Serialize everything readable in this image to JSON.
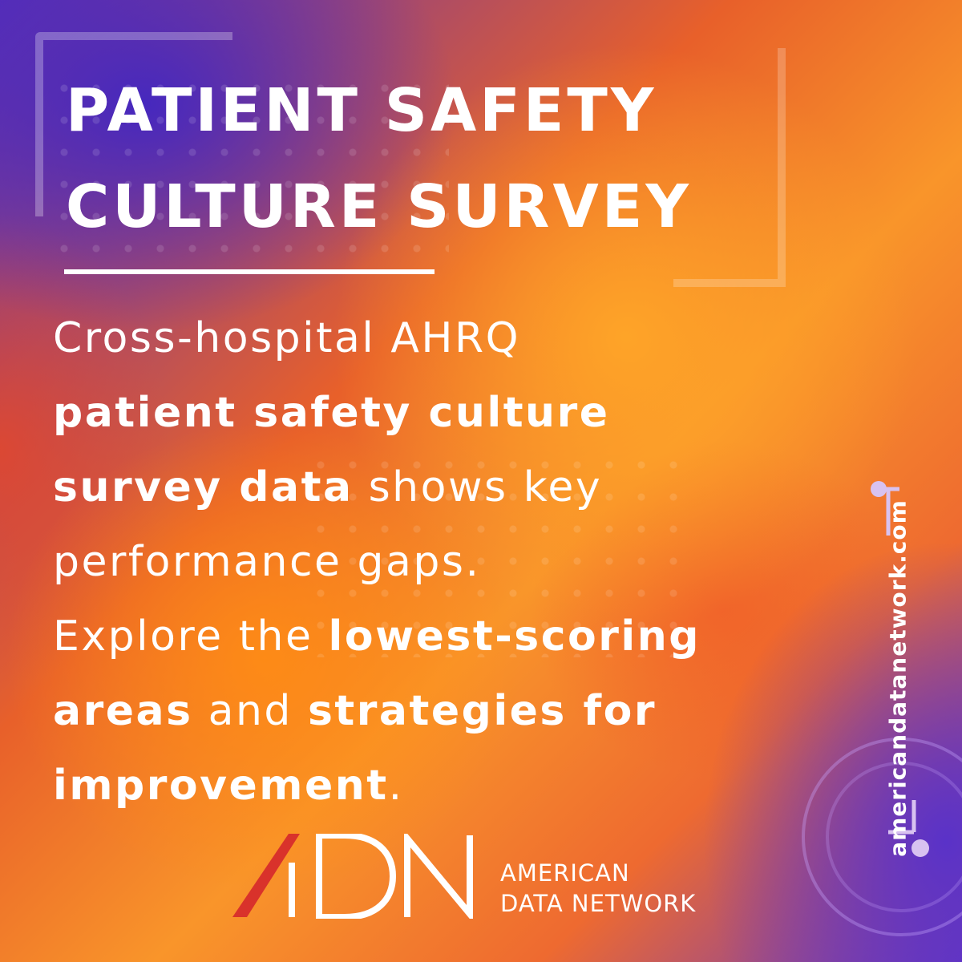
{
  "title": {
    "line1": "PATIENT SAFETY",
    "line2": "CULTURE SURVEY"
  },
  "body": {
    "l1_light": "Cross-hospital AHRQ",
    "l2_bold": "patient safety culture",
    "l3_bold": "survey data",
    "l3_light": " shows key",
    "l4_light": "performance gaps.",
    "l5_light": "Explore the ",
    "l5_bold": "lowest-scoring",
    "l6_bold_a": "areas",
    "l6_light": " and ",
    "l6_bold_b": "strategies for",
    "l7_bold": "improvement",
    "l7_light": "."
  },
  "brand": {
    "line1": "AMERICAN",
    "line2": "DATA NETWORK",
    "logo_icon": "adn-logo-icon",
    "accent_color": "#d9322b"
  },
  "website": "americandatanetwork.com"
}
